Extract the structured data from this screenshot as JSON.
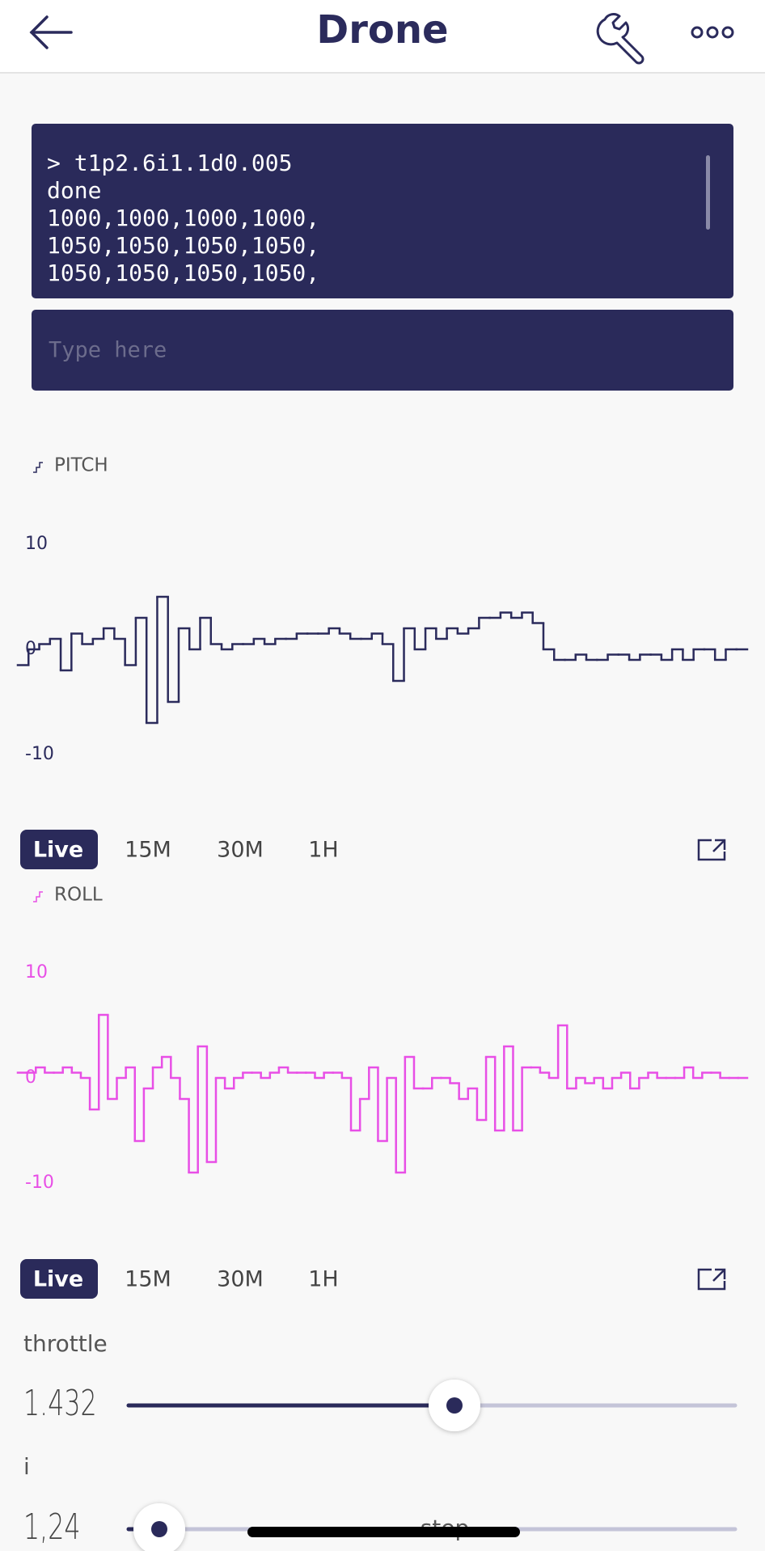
{
  "header": {
    "title": "Drone"
  },
  "terminal": {
    "lines": [
      "> t1p2.6i1.1d0.005",
      "done",
      "1000,1000,1000,1000,",
      "1050,1050,1050,1050,",
      "1050,1050,1050,1050,"
    ],
    "input_placeholder": "Type here"
  },
  "charts": [
    {
      "label": "PITCH",
      "type": "line",
      "color": "#2b2b5c",
      "ylim": [
        -10,
        10
      ],
      "yticks": [
        10,
        0,
        -10
      ],
      "values": [
        -1.5,
        0,
        0.5,
        1,
        -2,
        1.5,
        0.5,
        1,
        2,
        1,
        -1.5,
        3,
        -7,
        5,
        -5,
        2,
        0,
        3,
        0.5,
        0,
        0.5,
        0.5,
        1,
        0.5,
        1,
        1,
        1.5,
        1.5,
        1.5,
        2,
        1.5,
        1,
        1,
        1.5,
        0.5,
        -3,
        2,
        0,
        2,
        1,
        2,
        1.5,
        2,
        3,
        3,
        3.5,
        3,
        3.5,
        2.5,
        0,
        -1,
        -1,
        -0.5,
        -1,
        -1,
        -0.5,
        -0.5,
        -1,
        -0.5,
        -0.5,
        -1,
        0,
        -1,
        0,
        0,
        -1,
        0,
        0
      ],
      "time_ranges": [
        "Live",
        "15M",
        "30M",
        "1H"
      ],
      "selected_range": 0
    },
    {
      "label": "ROLL",
      "type": "line",
      "color": "#e84fe6",
      "ylim": [
        -10,
        10
      ],
      "yticks": [
        10,
        0,
        -10
      ],
      "values": [
        0.5,
        0.5,
        1,
        0.5,
        0.5,
        1,
        0.5,
        0,
        -3,
        6,
        -2,
        0,
        1,
        -6,
        -1,
        1,
        2,
        0,
        -2,
        -9,
        3,
        -8,
        0,
        -1,
        0,
        0.5,
        0.5,
        0,
        0.5,
        1,
        0.5,
        0.5,
        0.5,
        0,
        0.5,
        0.5,
        0,
        -5,
        -2,
        1,
        -6,
        0,
        -9,
        2,
        -1,
        -1,
        0,
        0,
        -0.5,
        -2,
        -1,
        -4,
        2,
        -5,
        3,
        -5,
        1,
        1,
        0.5,
        0,
        5,
        -1,
        0,
        -0.5,
        0,
        -1,
        0,
        0.5,
        -1,
        0,
        0.5,
        0,
        0,
        0,
        1,
        0,
        0.5,
        0.5,
        0,
        0,
        0
      ],
      "time_ranges": [
        "Live",
        "15M",
        "30M",
        "1H"
      ],
      "selected_range": 0
    }
  ],
  "sliders": [
    {
      "label": "throttle",
      "value": "1.432"
    },
    {
      "label": "i",
      "value": "1,24"
    }
  ],
  "step_label": "step"
}
